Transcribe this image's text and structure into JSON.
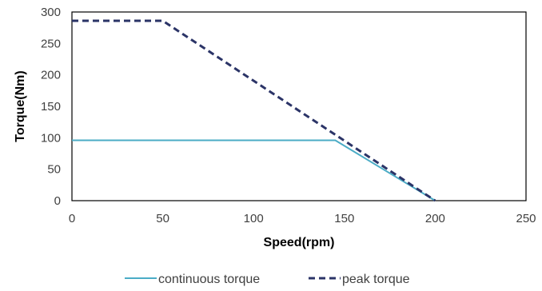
{
  "chart_data": {
    "type": "line",
    "title": "",
    "xlabel": "Speed(rpm)",
    "ylabel": "Torque(Nm)",
    "xlim": [
      0,
      250
    ],
    "ylim": [
      0,
      300
    ],
    "xticks": [
      "0",
      "50",
      "100",
      "150",
      "200",
      "250"
    ],
    "yticks": [
      "0",
      "50",
      "100",
      "150",
      "200",
      "250",
      "300"
    ],
    "grid": false,
    "legend_position": "bottom",
    "series": [
      {
        "name": "continuous torque",
        "color": "#4bacc6",
        "style": "solid",
        "x": [
          0,
          145,
          200
        ],
        "y": [
          96,
          96,
          0
        ]
      },
      {
        "name": "peak torque",
        "color": "#2b3467",
        "style": "dashed",
        "x": [
          0,
          50,
          200
        ],
        "y": [
          286,
          286,
          0
        ]
      }
    ]
  }
}
